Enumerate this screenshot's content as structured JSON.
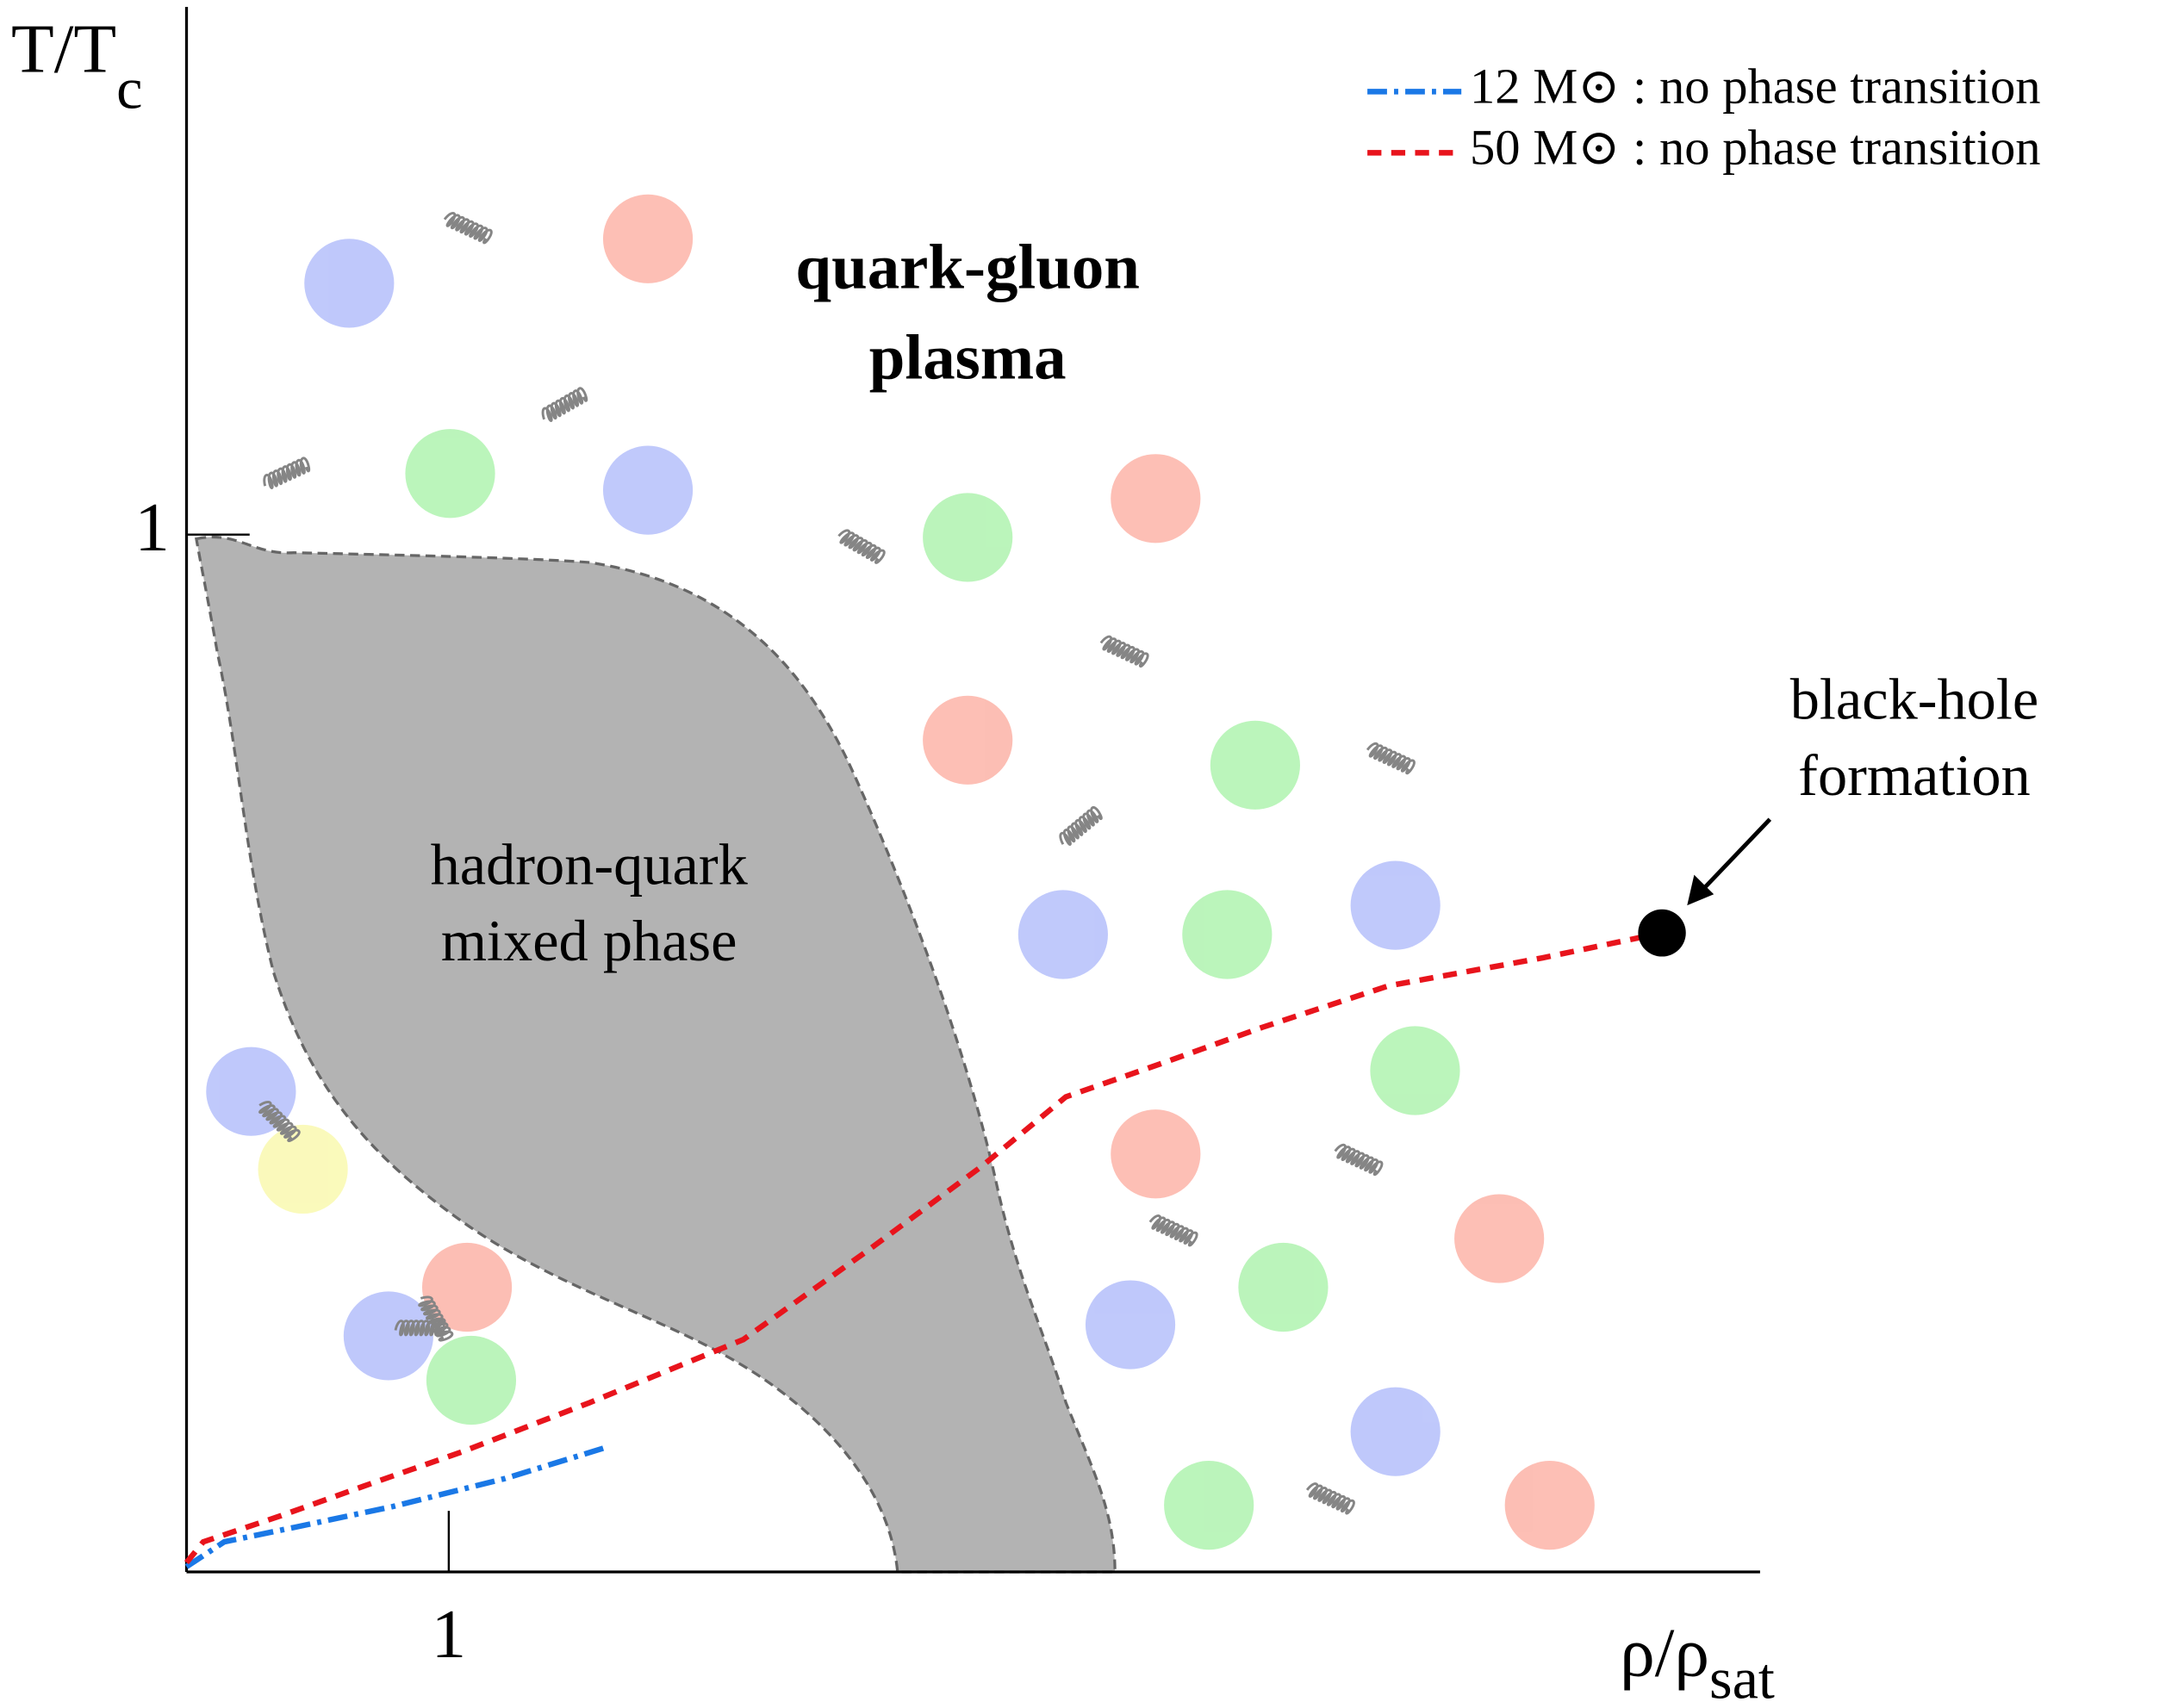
{
  "chart_data": {
    "type": "line",
    "xlabel": [
      "ρ/ρ",
      "sat"
    ],
    "ylabel": [
      "T/T",
      "c"
    ],
    "xlim": [
      0,
      6
    ],
    "ylim": [
      0,
      1.5
    ],
    "xticks": [
      1
    ],
    "yticks": [
      1
    ],
    "legend": "upper right",
    "regions": {
      "plasma": [
        "quark-gluon",
        "plasma"
      ],
      "mixed": [
        "hadron-quark",
        "mixed phase"
      ]
    },
    "annotation": [
      "black-hole",
      "formation"
    ],
    "series": [
      {
        "name": "12 M⊙ : no phase transition",
        "color": "#1a78e6",
        "linestyle": "dashdot",
        "x": [
          0,
          0.144,
          0.412,
          0.786,
          1.214,
          1.599
        ],
        "values": [
          0.005,
          0.029,
          0.043,
          0.063,
          0.09,
          0.12
        ]
      },
      {
        "name": "50 M⊙ : no phase transition",
        "color": "#e8141c",
        "linestyle": "dash",
        "x": [
          0,
          0.064,
          0.358,
          0.679,
          1.053,
          1.535,
          2.123,
          2.604,
          3.032,
          3.353,
          3.727,
          4.102,
          4.583,
          5.171,
          5.626
        ],
        "values": [
          0.009,
          0.029,
          0.054,
          0.083,
          0.116,
          0.163,
          0.224,
          0.311,
          0.391,
          0.458,
          0.491,
          0.525,
          0.565,
          0.592,
          0.616
        ]
      }
    ]
  }
}
